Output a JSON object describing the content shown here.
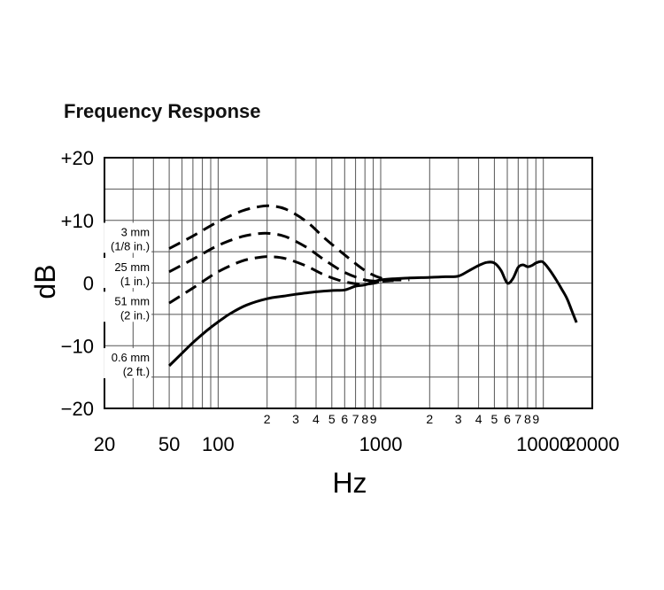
{
  "chart_data": {
    "type": "line",
    "title": "Frequency Response",
    "xlabel": "Hz",
    "ylabel": "dB",
    "x_scale": "log",
    "xlim": [
      20,
      20000
    ],
    "ylim": [
      -20,
      20
    ],
    "y_ticks": [
      {
        "value": 20,
        "label": "+20"
      },
      {
        "value": 10,
        "label": "+10"
      },
      {
        "value": 0,
        "label": "0"
      },
      {
        "value": -10,
        "label": "−10"
      },
      {
        "value": -20,
        "label": "−20"
      }
    ],
    "x_major_labels": [
      {
        "value": 20,
        "label": "20"
      },
      {
        "value": 50,
        "label": "50"
      },
      {
        "value": 100,
        "label": "100"
      },
      {
        "value": 1000,
        "label": "1000"
      },
      {
        "value": 10000,
        "label": "10000"
      },
      {
        "value": 20000,
        "label": "20000"
      }
    ],
    "x_minor_labels": [
      {
        "value": 200,
        "label": "2"
      },
      {
        "value": 300,
        "label": "3"
      },
      {
        "value": 400,
        "label": "4"
      },
      {
        "value": 500,
        "label": "5"
      },
      {
        "value": 600,
        "label": "6"
      },
      {
        "value": 700,
        "label": "7"
      },
      {
        "value": 800,
        "label": "8"
      },
      {
        "value": 900,
        "label": "9"
      },
      {
        "value": 2000,
        "label": "2"
      },
      {
        "value": 3000,
        "label": "3"
      },
      {
        "value": 4000,
        "label": "4"
      },
      {
        "value": 5000,
        "label": "5"
      },
      {
        "value": 6000,
        "label": "6"
      },
      {
        "value": 7000,
        "label": "7"
      },
      {
        "value": 8000,
        "label": "8"
      },
      {
        "value": 9000,
        "label": "9"
      }
    ],
    "grid": true,
    "series": [
      {
        "name": "3 mm (1/8 in.)",
        "label_lines": [
          "3 mm",
          "(1/8 in.)"
        ],
        "label_at": {
          "x": 37,
          "y": 7.5
        },
        "style": "dashed",
        "x": [
          50,
          70,
          100,
          140,
          180,
          210,
          260,
          350,
          450,
          600,
          800,
          1000,
          1200,
          1500
        ],
        "y": [
          5.5,
          7.5,
          9.8,
          11.5,
          12.2,
          12.3,
          11.8,
          9.8,
          7.2,
          4.5,
          2.0,
          0.8,
          0.5,
          0.5
        ]
      },
      {
        "name": "25 mm (1 in.)",
        "label_lines": [
          "25 mm",
          "(1 in.)"
        ],
        "label_at": {
          "x": 37,
          "y": 1.9
        },
        "style": "dashed",
        "x": [
          50,
          70,
          100,
          140,
          180,
          210,
          260,
          350,
          450,
          600,
          800,
          1000,
          1200
        ],
        "y": [
          1.8,
          3.8,
          6.0,
          7.4,
          7.9,
          7.9,
          7.4,
          5.7,
          3.7,
          1.7,
          0.5,
          0.3,
          0.4
        ]
      },
      {
        "name": "51 mm (2 in.)",
        "label_lines": [
          "51 mm",
          "(2 in.)"
        ],
        "label_at": {
          "x": 37,
          "y": -3.5
        },
        "style": "dashed",
        "x": [
          50,
          70,
          100,
          140,
          180,
          210,
          260,
          350,
          450,
          600,
          800,
          1000
        ],
        "y": [
          -3.2,
          -0.8,
          1.8,
          3.5,
          4.1,
          4.2,
          3.9,
          2.7,
          1.3,
          0.2,
          -0.2,
          0.2
        ]
      },
      {
        "name": "0.6 mm (2 ft.)",
        "label_lines": [
          "0.6 mm",
          "(2 ft.)"
        ],
        "label_at": {
          "x": 37,
          "y": -12.5
        },
        "style": "solid",
        "x": [
          50,
          60,
          70,
          85,
          100,
          120,
          150,
          200,
          250,
          300,
          400,
          500,
          600,
          700,
          800,
          1000,
          1500,
          2000,
          2500,
          3000,
          3500,
          4000,
          4500,
          5000,
          5500,
          6000,
          6500,
          7000,
          7500,
          8000,
          8500,
          9000,
          9500,
          10000,
          11000,
          12000,
          13000,
          14000,
          15000,
          16000
        ],
        "y": [
          -13.2,
          -11.2,
          -9.5,
          -7.6,
          -6.2,
          -4.8,
          -3.5,
          -2.5,
          -2.1,
          -1.8,
          -1.4,
          -1.2,
          -1.1,
          -0.5,
          -0.3,
          0.5,
          0.8,
          0.9,
          1.0,
          1.1,
          2.0,
          2.8,
          3.3,
          3.2,
          2.0,
          0.0,
          0.7,
          2.5,
          2.9,
          2.6,
          2.8,
          3.2,
          3.4,
          3.3,
          2.0,
          0.5,
          -1.0,
          -2.5,
          -4.5,
          -6.3
        ]
      }
    ]
  }
}
